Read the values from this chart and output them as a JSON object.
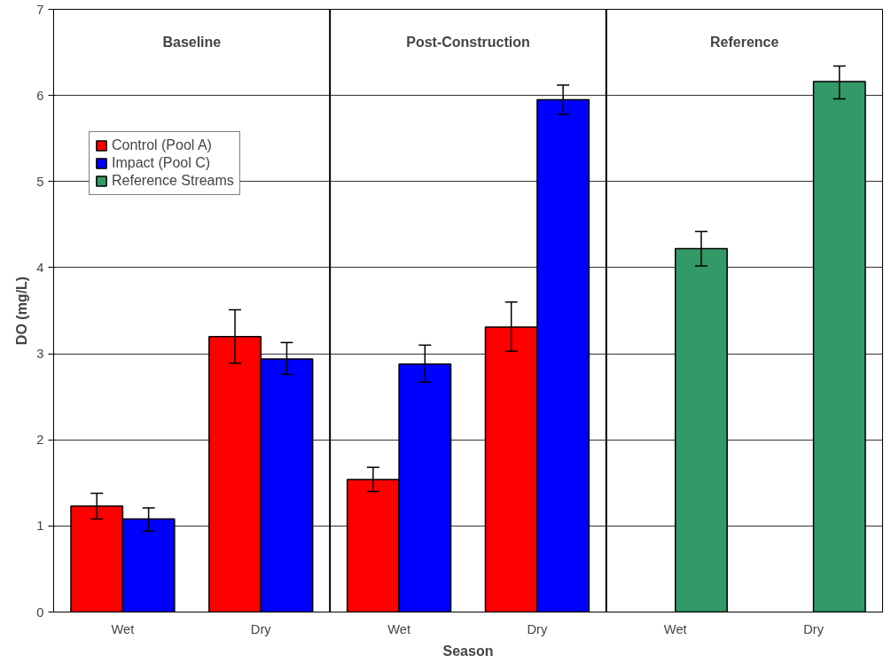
{
  "chart_data": {
    "type": "bar",
    "xlabel": "Season",
    "ylabel": "DO (mg/L)",
    "categories": [
      "Wet",
      "Dry",
      "Wet",
      "Dry",
      "Wet",
      "Dry"
    ],
    "series": [
      {
        "name": "Control (Pool A)",
        "color": "#ff0000",
        "values": [
          1.23,
          3.2,
          1.54,
          3.31,
          null,
          null
        ],
        "errors": [
          [
            1.08,
            1.38
          ],
          [
            2.89,
            3.51
          ],
          [
            1.4,
            1.68
          ],
          [
            3.03,
            3.6
          ],
          null,
          null
        ]
      },
      {
        "name": "Impact (Pool C)",
        "color": "#0000ff",
        "values": [
          1.08,
          2.94,
          2.88,
          5.95,
          null,
          null
        ],
        "errors": [
          [
            0.94,
            1.21
          ],
          [
            2.76,
            3.13
          ],
          [
            2.67,
            3.1
          ],
          [
            5.78,
            6.12
          ],
          null,
          null
        ]
      },
      {
        "name": "Reference Streams",
        "color": "#339966",
        "values": [
          null,
          null,
          null,
          null,
          4.22,
          6.16
        ],
        "errors": [
          null,
          null,
          null,
          null,
          [
            4.02,
            4.42
          ],
          [
            5.96,
            6.34
          ]
        ]
      }
    ],
    "annotations": [
      "Baseline",
      "Post-Construction",
      "Reference"
    ],
    "ylim": [
      0,
      7
    ],
    "yticks": [
      0,
      1,
      2,
      3,
      4,
      5,
      6,
      7
    ],
    "grid": "y",
    "legend": "top left"
  }
}
